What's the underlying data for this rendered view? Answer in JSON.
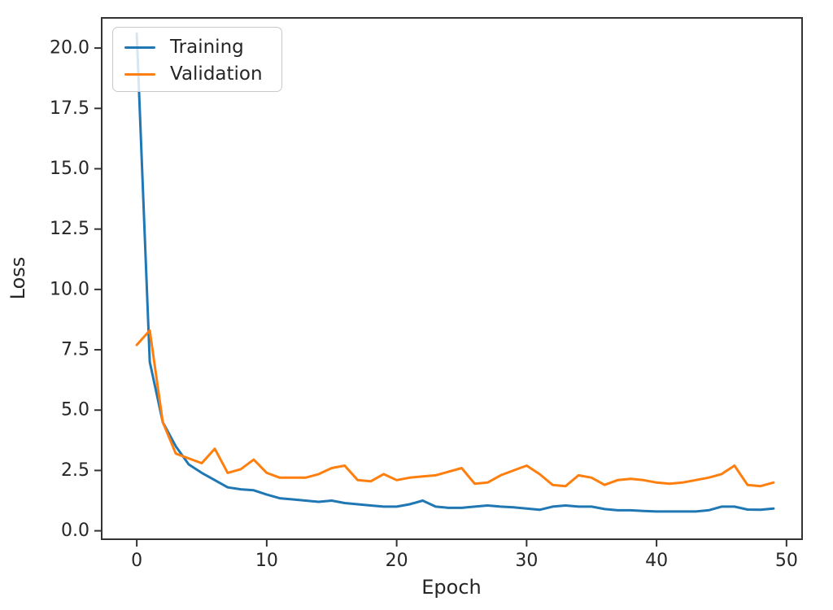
{
  "chart_data": {
    "type": "line",
    "title": "",
    "xlabel": "Epoch",
    "ylabel": "Loss",
    "x": [
      0,
      1,
      2,
      3,
      4,
      5,
      6,
      7,
      8,
      9,
      10,
      11,
      12,
      13,
      14,
      15,
      16,
      17,
      18,
      19,
      20,
      21,
      22,
      23,
      24,
      25,
      26,
      27,
      28,
      29,
      30,
      31,
      32,
      33,
      34,
      35,
      36,
      37,
      38,
      39,
      40,
      41,
      42,
      43,
      44,
      45,
      46,
      47,
      48,
      49
    ],
    "series": [
      {
        "name": "Training",
        "color": "#1f77b4",
        "values": [
          20.6,
          7.0,
          4.5,
          3.5,
          2.75,
          2.4,
          2.1,
          1.8,
          1.72,
          1.68,
          1.5,
          1.35,
          1.3,
          1.25,
          1.2,
          1.25,
          1.15,
          1.1,
          1.05,
          1.0,
          1.0,
          1.1,
          1.25,
          1.0,
          0.95,
          0.95,
          1.0,
          1.05,
          1.0,
          0.97,
          0.92,
          0.87,
          1.0,
          1.05,
          1.0,
          1.0,
          0.9,
          0.85,
          0.85,
          0.82,
          0.8,
          0.8,
          0.8,
          0.8,
          0.85,
          1.0,
          1.0,
          0.88,
          0.87,
          0.92
        ]
      },
      {
        "name": "Validation",
        "color": "#ff7f0e",
        "values": [
          7.7,
          8.3,
          4.5,
          3.2,
          3.0,
          2.8,
          3.4,
          2.4,
          2.55,
          2.95,
          2.4,
          2.2,
          2.2,
          2.2,
          2.35,
          2.6,
          2.7,
          2.1,
          2.05,
          2.35,
          2.1,
          2.2,
          2.25,
          2.3,
          2.45,
          2.6,
          1.95,
          2.0,
          2.3,
          2.5,
          2.7,
          2.35,
          1.9,
          1.85,
          2.3,
          2.2,
          1.9,
          2.1,
          2.15,
          2.1,
          2.0,
          1.95,
          2.0,
          2.1,
          2.2,
          2.35,
          2.7,
          1.9,
          1.85,
          2.0
        ]
      }
    ],
    "xticks": [
      0,
      10,
      20,
      30,
      40,
      50
    ],
    "xtick_labels": [
      "0",
      "10",
      "20",
      "30",
      "40",
      "50"
    ],
    "yticks": [
      0,
      2.5,
      5,
      7.5,
      10,
      12.5,
      15,
      17.5,
      20
    ],
    "ytick_labels": [
      "0.0",
      "2.5",
      "5.0",
      "7.5",
      "10.0",
      "12.5",
      "15.0",
      "17.5",
      "20.0"
    ],
    "xlim": [
      -2.7,
      51.2
    ],
    "ylim": [
      -0.35,
      21.25
    ],
    "grid": false,
    "legend_position": "upper left",
    "background": "#ffffff",
    "axis_color": "#333333",
    "text_color": "#262626"
  }
}
